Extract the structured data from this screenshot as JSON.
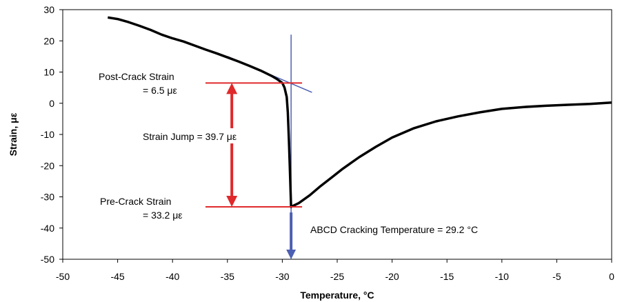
{
  "chart_data": {
    "type": "line",
    "title": "",
    "xlabel": "Temperature, °C",
    "ylabel": "Strain, με",
    "xlim": [
      -50,
      0
    ],
    "ylim": [
      -50,
      30
    ],
    "xticks": [
      -50,
      -45,
      -40,
      -35,
      -30,
      -25,
      -20,
      -15,
      -10,
      -5,
      0
    ],
    "yticks": [
      30,
      20,
      10,
      0,
      -10,
      -20,
      -30,
      -40,
      -50
    ],
    "grid": false,
    "legend": "none",
    "series": [
      {
        "color": "#000000",
        "x": [
          -45.9,
          -45.0,
          -44.0,
          -43.0,
          -42.0,
          -41.0,
          -40.0,
          -39.0,
          -38.0,
          -37.0,
          -36.0,
          -35.0,
          -34.0,
          -33.0,
          -32.0,
          -31.0,
          -30.5,
          -30.0,
          -29.8,
          -29.6,
          -29.5,
          -29.4,
          -29.3,
          -29.2,
          -28.5,
          -27.5,
          -26.5,
          -25.5,
          -24.5,
          -23.0,
          -21.5,
          -20.0,
          -18.0,
          -16.0,
          -14.0,
          -12.0,
          -10.0,
          -8.0,
          -6.0,
          -4.0,
          -2.0,
          0.0
        ],
        "y": [
          27.5,
          27.0,
          26.0,
          24.8,
          23.5,
          22.0,
          20.8,
          19.8,
          18.5,
          17.2,
          16.0,
          14.7,
          13.4,
          12.0,
          10.5,
          8.8,
          7.8,
          6.5,
          5.0,
          2.0,
          -3.0,
          -12.0,
          -22.0,
          -33.2,
          -32.0,
          -29.5,
          -26.5,
          -23.8,
          -21.0,
          -17.3,
          -14.0,
          -11.0,
          -8.0,
          -5.8,
          -4.2,
          -2.9,
          -1.8,
          -1.2,
          -0.8,
          -0.5,
          -0.2,
          0.2
        ]
      }
    ],
    "tangent_line": {
      "color": "#4d5fb3",
      "x": [
        -35.0,
        -27.3
      ],
      "y": [
        15.0,
        3.5
      ]
    },
    "vertical_line": {
      "color": "#4d5fb3",
      "x": -29.2,
      "y": [
        22.0,
        -50.0
      ]
    },
    "post_crack_line": {
      "color": "#e0292b",
      "x": [
        -37.0,
        -28.2
      ],
      "y": 6.5
    },
    "pre_crack_line": {
      "color": "#e0292b",
      "x": [
        -37.0,
        -28.2
      ],
      "y": -33.2
    },
    "strain_jump_arrow": {
      "color": "#e0292b",
      "x": -34.6,
      "y": [
        6.5,
        -33.2
      ]
    },
    "cracking_arrow": {
      "color": "#4d5fb3",
      "x": -29.2,
      "y": [
        -35.0,
        -50.0
      ]
    }
  },
  "annotations": {
    "post_crack_line1": "Post-Crack Strain",
    "post_crack_line2": "= 6.5 με",
    "strain_jump": "Strain Jump = 39.7 με",
    "pre_crack_line1": "Pre-Crack Strain",
    "pre_crack_line2": "= 33.2 με",
    "cracking_temp": "ABCD Cracking Temperature = 29.2 °C"
  }
}
